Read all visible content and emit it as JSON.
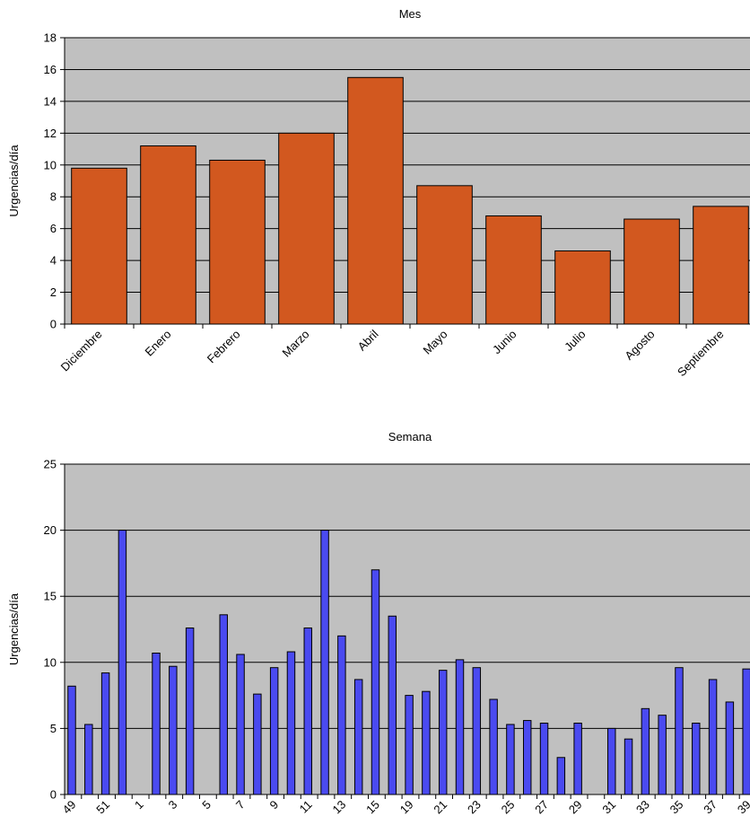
{
  "chart_data": [
    {
      "type": "bar",
      "title": "Mes",
      "y_label": "Urgencias/día",
      "categories": [
        "Diciembre",
        "Enero",
        "Febrero",
        "Marzo",
        "Abril",
        "Mayo",
        "Junio",
        "Julio",
        "Agosto",
        "Septiembre"
      ],
      "values": [
        9.8,
        11.2,
        10.3,
        12,
        15.5,
        8.7,
        6.8,
        4.6,
        6.6,
        7.4
      ],
      "color": "#d2581f",
      "ylim": [
        0,
        18
      ],
      "yticks": [
        0,
        2,
        4,
        6,
        8,
        10,
        12,
        14,
        16,
        18
      ],
      "grid": true
    },
    {
      "type": "bar",
      "title": "Semana",
      "y_label": "Urgencias/día",
      "categories": [
        "49",
        null,
        "51",
        null,
        "1",
        null,
        "3",
        null,
        "5",
        null,
        "7",
        null,
        "9",
        null,
        "11",
        null,
        "13",
        null,
        "15",
        null,
        "19",
        null,
        "21",
        null,
        "23",
        null,
        "25",
        null,
        "27",
        null,
        "29",
        null,
        "31",
        null,
        "33",
        null,
        "35",
        null,
        "37",
        null,
        "39"
      ],
      "values": [
        8.2,
        5.3,
        9.2,
        20,
        null,
        10.7,
        9.7,
        12.6,
        null,
        13.6,
        10.6,
        7.6,
        9.6,
        10.8,
        12.6,
        20,
        12,
        8.7,
        17,
        13.5,
        7.5,
        7.8,
        9.4,
        10.2,
        9.6,
        7.2,
        5.3,
        5.6,
        5.4,
        2.8,
        5.4,
        null,
        5.0,
        4.2,
        6.5,
        6.0,
        9.6,
        5.4,
        8.7,
        7.0,
        9.5
      ],
      "color": "#4a4af0",
      "ylim": [
        0,
        25
      ],
      "yticks": [
        0,
        5,
        10,
        15,
        20,
        25
      ],
      "grid": true
    }
  ]
}
